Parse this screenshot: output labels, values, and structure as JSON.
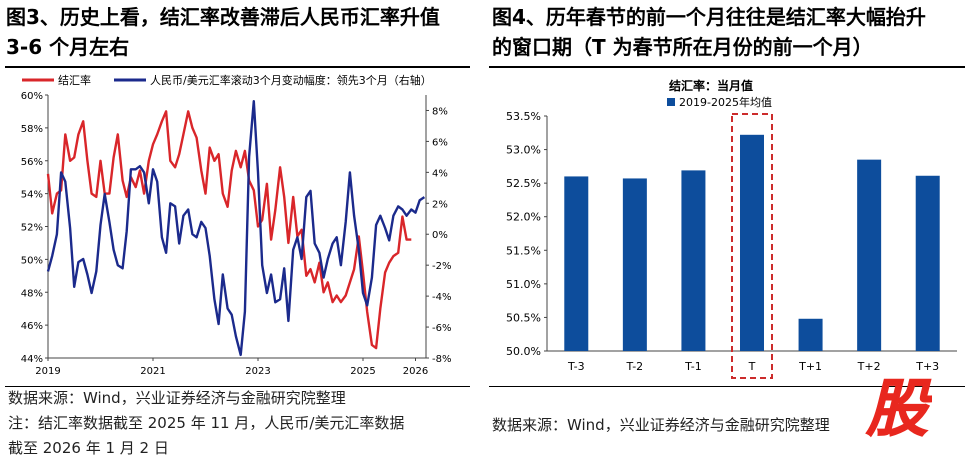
{
  "left": {
    "title_line1": "图3、历史上看，结汇率改善滞后人民币汇率升值",
    "title_line2": "3-6 个月左右",
    "legend": [
      "结汇率",
      "人民币/美元汇率滚动3个月变动幅度：领先3个月（右轴）"
    ],
    "source": "数据来源：Wind，兴业证券经济与金融研究院整理",
    "note_line1": "注：结汇率数据截至 2025 年 11 月，人民币/美元汇率数据",
    "note_line2": "截至 2026 年 1 月 2 日"
  },
  "right": {
    "title_line1": "图4、历年春节的前一个月往往是结汇率大幅抬升",
    "title_line2": "的窗口期（T 为春节所在月份的前一个月）",
    "source": "数据来源：Wind，兴业证券经济与金融研究院整理"
  },
  "colors": {
    "red": "#d9262a",
    "navy": "#1b2a8c",
    "bar": "#0d4d9c",
    "dash": "#cc2b2b",
    "stamp": "#e8271e"
  },
  "stamp_glyph": "股",
  "chart_data": [
    {
      "type": "line",
      "x_ticks": [
        "2019",
        "2021",
        "2023",
        "2025",
        "2026"
      ],
      "x_tick_years": [
        2019,
        2021,
        2023,
        2025,
        2026
      ],
      "x_range": [
        2019.0,
        2026.2
      ],
      "y_left": {
        "min": 44,
        "max": 60,
        "ticks": [
          "44%",
          "46%",
          "48%",
          "50%",
          "52%",
          "54%",
          "56%",
          "58%",
          "60%"
        ]
      },
      "y_right": {
        "min": -8,
        "max": 9,
        "ticks": [
          "-8%",
          "-6%",
          "-4%",
          "-2%",
          "0%",
          "2%",
          "4%",
          "6%",
          "8%"
        ]
      },
      "series": [
        {
          "name": "结汇率",
          "axis": "left",
          "points": [
            [
              2019.0,
              55.2
            ],
            [
              2019.08,
              52.8
            ],
            [
              2019.17,
              54.0
            ],
            [
              2019.25,
              54.2
            ],
            [
              2019.33,
              57.6
            ],
            [
              2019.42,
              56.0
            ],
            [
              2019.5,
              56.2
            ],
            [
              2019.58,
              57.6
            ],
            [
              2019.67,
              58.4
            ],
            [
              2019.75,
              56.0
            ],
            [
              2019.83,
              54.0
            ],
            [
              2019.92,
              53.8
            ],
            [
              2020.0,
              56.0
            ],
            [
              2020.08,
              54.0
            ],
            [
              2020.17,
              54.0
            ],
            [
              2020.25,
              56.2
            ],
            [
              2020.33,
              57.6
            ],
            [
              2020.42,
              54.8
            ],
            [
              2020.5,
              53.8
            ],
            [
              2020.58,
              55.0
            ],
            [
              2020.67,
              54.4
            ],
            [
              2020.75,
              55.4
            ],
            [
              2020.83,
              54.0
            ],
            [
              2020.92,
              56.0
            ],
            [
              2021.0,
              57.0
            ],
            [
              2021.08,
              57.6
            ],
            [
              2021.17,
              58.4
            ],
            [
              2021.25,
              59.0
            ],
            [
              2021.33,
              56.0
            ],
            [
              2021.42,
              55.6
            ],
            [
              2021.5,
              56.4
            ],
            [
              2021.58,
              57.6
            ],
            [
              2021.67,
              59.0
            ],
            [
              2021.75,
              58.0
            ],
            [
              2021.83,
              57.4
            ],
            [
              2021.92,
              55.4
            ],
            [
              2022.0,
              54.0
            ],
            [
              2022.08,
              56.8
            ],
            [
              2022.17,
              56.0
            ],
            [
              2022.25,
              56.4
            ],
            [
              2022.33,
              54.0
            ],
            [
              2022.42,
              53.2
            ],
            [
              2022.5,
              55.4
            ],
            [
              2022.58,
              56.6
            ],
            [
              2022.67,
              55.6
            ],
            [
              2022.75,
              56.6
            ],
            [
              2022.83,
              54.8
            ],
            [
              2022.92,
              54.2
            ],
            [
              2023.0,
              52.0
            ],
            [
              2023.08,
              52.4
            ],
            [
              2023.17,
              54.6
            ],
            [
              2023.25,
              51.2
            ],
            [
              2023.33,
              53.0
            ],
            [
              2023.42,
              55.6
            ],
            [
              2023.5,
              53.8
            ],
            [
              2023.58,
              51.0
            ],
            [
              2023.67,
              53.8
            ],
            [
              2023.75,
              51.4
            ],
            [
              2023.83,
              51.8
            ],
            [
              2023.92,
              49.0
            ],
            [
              2024.0,
              49.4
            ],
            [
              2024.08,
              48.6
            ],
            [
              2024.17,
              49.8
            ],
            [
              2024.25,
              48.0
            ],
            [
              2024.33,
              48.6
            ],
            [
              2024.42,
              47.4
            ],
            [
              2024.5,
              47.8
            ],
            [
              2024.58,
              47.4
            ],
            [
              2024.67,
              47.8
            ],
            [
              2024.75,
              48.6
            ],
            [
              2024.83,
              49.4
            ],
            [
              2024.92,
              51.4
            ],
            [
              2025.0,
              49.2
            ],
            [
              2025.08,
              46.8
            ],
            [
              2025.17,
              44.8
            ],
            [
              2025.25,
              44.6
            ],
            [
              2025.33,
              47.0
            ],
            [
              2025.42,
              49.2
            ],
            [
              2025.5,
              49.8
            ],
            [
              2025.58,
              50.2
            ],
            [
              2025.67,
              50.4
            ],
            [
              2025.75,
              52.6
            ],
            [
              2025.83,
              51.2
            ],
            [
              2025.92,
              51.2
            ]
          ]
        },
        {
          "name": "人民币/美元汇率滚动3个月变动幅度：领先3个月（右轴）",
          "axis": "right",
          "points": [
            [
              2019.0,
              -2.4
            ],
            [
              2019.08,
              -1.4
            ],
            [
              2019.17,
              0.0
            ],
            [
              2019.25,
              4.0
            ],
            [
              2019.33,
              3.4
            ],
            [
              2019.42,
              0.4
            ],
            [
              2019.5,
              -3.4
            ],
            [
              2019.58,
              -1.8
            ],
            [
              2019.67,
              -1.6
            ],
            [
              2019.75,
              -2.6
            ],
            [
              2019.83,
              -3.8
            ],
            [
              2019.92,
              -2.4
            ],
            [
              2020.0,
              0.6
            ],
            [
              2020.08,
              2.6
            ],
            [
              2020.17,
              0.8
            ],
            [
              2020.25,
              -1.0
            ],
            [
              2020.33,
              -2.0
            ],
            [
              2020.42,
              -2.2
            ],
            [
              2020.5,
              0.2
            ],
            [
              2020.58,
              4.2
            ],
            [
              2020.67,
              4.2
            ],
            [
              2020.75,
              4.4
            ],
            [
              2020.83,
              4.0
            ],
            [
              2020.92,
              2.0
            ],
            [
              2021.0,
              4.2
            ],
            [
              2021.08,
              3.4
            ],
            [
              2021.17,
              -0.2
            ],
            [
              2021.25,
              -1.2
            ],
            [
              2021.33,
              2.0
            ],
            [
              2021.42,
              1.8
            ],
            [
              2021.5,
              -0.6
            ],
            [
              2021.58,
              1.2
            ],
            [
              2021.67,
              1.6
            ],
            [
              2021.75,
              0.0
            ],
            [
              2021.83,
              -0.2
            ],
            [
              2021.92,
              0.8
            ],
            [
              2022.0,
              0.4
            ],
            [
              2022.08,
              -1.4
            ],
            [
              2022.17,
              -4.2
            ],
            [
              2022.25,
              -5.8
            ],
            [
              2022.33,
              -2.6
            ],
            [
              2022.42,
              -4.8
            ],
            [
              2022.5,
              -5.2
            ],
            [
              2022.58,
              -6.6
            ],
            [
              2022.67,
              -7.8
            ],
            [
              2022.75,
              -5.0
            ],
            [
              2022.83,
              5.0
            ],
            [
              2022.92,
              8.6
            ],
            [
              2023.0,
              4.0
            ],
            [
              2023.08,
              -2.0
            ],
            [
              2023.17,
              -3.8
            ],
            [
              2023.25,
              -2.6
            ],
            [
              2023.33,
              -4.4
            ],
            [
              2023.42,
              -4.2
            ],
            [
              2023.5,
              -2.2
            ],
            [
              2023.58,
              -5.6
            ],
            [
              2023.67,
              -1.0
            ],
            [
              2023.75,
              -0.2
            ],
            [
              2023.83,
              -1.6
            ],
            [
              2023.92,
              2.4
            ],
            [
              2024.0,
              2.8
            ],
            [
              2024.08,
              -0.6
            ],
            [
              2024.17,
              -1.2
            ],
            [
              2024.25,
              -2.8
            ],
            [
              2024.33,
              -1.6
            ],
            [
              2024.42,
              -0.6
            ],
            [
              2024.5,
              -0.2
            ],
            [
              2024.58,
              -2.0
            ],
            [
              2024.67,
              0.8
            ],
            [
              2024.75,
              4.0
            ],
            [
              2024.83,
              1.2
            ],
            [
              2024.92,
              -1.0
            ],
            [
              2025.0,
              -3.8
            ],
            [
              2025.08,
              -4.6
            ],
            [
              2025.17,
              -2.8
            ],
            [
              2025.25,
              0.6
            ],
            [
              2025.33,
              1.2
            ],
            [
              2025.42,
              0.4
            ],
            [
              2025.5,
              -0.4
            ],
            [
              2025.58,
              1.2
            ],
            [
              2025.67,
              1.8
            ],
            [
              2025.75,
              1.6
            ],
            [
              2025.83,
              1.2
            ],
            [
              2025.92,
              1.6
            ],
            [
              2026.0,
              1.4
            ],
            [
              2026.08,
              2.2
            ],
            [
              2026.17,
              2.4
            ]
          ]
        }
      ]
    },
    {
      "type": "bar",
      "title": "结汇率：当月值",
      "legend": "2019-2025年均值",
      "categories": [
        "T-3",
        "T-2",
        "T-1",
        "T",
        "T+1",
        "T+2",
        "T+3"
      ],
      "values": [
        52.6,
        52.57,
        52.69,
        53.22,
        50.48,
        52.85,
        52.61
      ],
      "highlight": "T",
      "y_min": 50.0,
      "y_max": 53.5,
      "y_ticks": [
        "50.0%",
        "50.5%",
        "51.0%",
        "51.5%",
        "52.0%",
        "52.5%",
        "53.0%",
        "53.5%"
      ]
    }
  ]
}
